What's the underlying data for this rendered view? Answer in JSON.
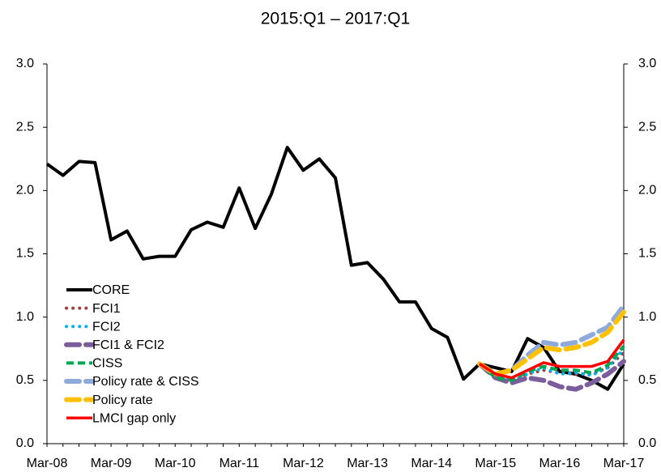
{
  "chart_data": {
    "type": "line",
    "title": "2015:Q1 – 2017:Q1",
    "categories": [
      "Mar-08",
      null,
      null,
      null,
      "Mar-09",
      null,
      null,
      null,
      "Mar-10",
      null,
      null,
      null,
      "Mar-11",
      null,
      null,
      null,
      "Mar-12",
      null,
      null,
      null,
      "Mar-13",
      null,
      null,
      null,
      "Mar-14",
      null,
      null,
      null,
      "Mar-15",
      null,
      null,
      null,
      "Mar-16",
      null,
      null,
      null,
      "Mar-17"
    ],
    "ylim": [
      0,
      3
    ],
    "yticks": [
      {
        "value": 0,
        "label": "0.0"
      },
      {
        "value": 0.5,
        "label": "0.5"
      },
      {
        "value": 1,
        "label": "1.0"
      },
      {
        "value": 1.5,
        "label": "1.5"
      },
      {
        "value": 2,
        "label": "2.0"
      },
      {
        "value": 2.5,
        "label": "2.5"
      },
      {
        "value": 3,
        "label": "3.0"
      }
    ],
    "y2lim": [
      0,
      3
    ],
    "y2ticks": [
      {
        "value": 0,
        "label": "0.0"
      },
      {
        "value": 0.5,
        "label": "0.5"
      },
      {
        "value": 1,
        "label": "1.0"
      },
      {
        "value": 1.5,
        "label": "1.5"
      },
      {
        "value": 2,
        "label": "2.0"
      },
      {
        "value": 2.5,
        "label": "2.5"
      },
      {
        "value": 3,
        "label": "3.0"
      }
    ],
    "legend": "lower left",
    "series": [
      {
        "name": "CORE",
        "color": "#000000",
        "style": "solid",
        "values": [
          2.21,
          2.12,
          2.23,
          2.22,
          1.61,
          1.68,
          1.46,
          1.48,
          1.48,
          1.69,
          1.75,
          1.71,
          2.02,
          1.7,
          1.97,
          2.34,
          2.16,
          2.25,
          2.1,
          1.41,
          1.43,
          1.3,
          1.12,
          1.12,
          0.91,
          0.84,
          0.51,
          0.63,
          0.6,
          0.57,
          0.83,
          0.76,
          0.57,
          0.55,
          0.5,
          0.43,
          0.63
        ]
      },
      {
        "name": "FCI1",
        "color": "#a0403c",
        "style": "dotted",
        "values": [
          null,
          null,
          null,
          null,
          null,
          null,
          null,
          null,
          null,
          null,
          null,
          null,
          null,
          null,
          null,
          null,
          null,
          null,
          null,
          null,
          null,
          null,
          null,
          null,
          null,
          null,
          null,
          0.63,
          0.52,
          0.49,
          0.55,
          0.58,
          0.56,
          0.55,
          0.55,
          0.6,
          0.72
        ]
      },
      {
        "name": "FCI2",
        "color": "#00b0f0",
        "style": "dotted",
        "values": [
          null,
          null,
          null,
          null,
          null,
          null,
          null,
          null,
          null,
          null,
          null,
          null,
          null,
          null,
          null,
          null,
          null,
          null,
          null,
          null,
          null,
          null,
          null,
          null,
          null,
          null,
          null,
          0.63,
          0.53,
          0.5,
          0.55,
          0.6,
          0.55,
          0.56,
          0.54,
          0.6,
          0.75
        ]
      },
      {
        "name": "FCI1 & FCI2",
        "color": "#7a5d9a",
        "style": "longdash",
        "values": [
          null,
          null,
          null,
          null,
          null,
          null,
          null,
          null,
          null,
          null,
          null,
          null,
          null,
          null,
          null,
          null,
          null,
          null,
          null,
          null,
          null,
          null,
          null,
          null,
          null,
          null,
          null,
          0.63,
          0.52,
          0.48,
          0.52,
          0.5,
          0.45,
          0.43,
          0.48,
          0.55,
          0.65
        ]
      },
      {
        "name": "CISS",
        "color": "#00a651",
        "style": "dashed",
        "values": [
          null,
          null,
          null,
          null,
          null,
          null,
          null,
          null,
          null,
          null,
          null,
          null,
          null,
          null,
          null,
          null,
          null,
          null,
          null,
          null,
          null,
          null,
          null,
          null,
          null,
          null,
          null,
          0.63,
          0.52,
          0.5,
          0.57,
          0.61,
          0.58,
          0.58,
          0.56,
          0.62,
          0.77
        ]
      },
      {
        "name": "Policy rate & CISS",
        "color": "#8eaadb",
        "style": "longdash",
        "values": [
          null,
          null,
          null,
          null,
          null,
          null,
          null,
          null,
          null,
          null,
          null,
          null,
          null,
          null,
          null,
          null,
          null,
          null,
          null,
          null,
          null,
          null,
          null,
          null,
          null,
          null,
          null,
          0.63,
          0.55,
          0.58,
          0.7,
          0.8,
          0.78,
          0.8,
          0.86,
          0.92,
          1.09
        ]
      },
      {
        "name": "Policy rate",
        "color": "#ffc000",
        "style": "longdash",
        "values": [
          null,
          null,
          null,
          null,
          null,
          null,
          null,
          null,
          null,
          null,
          null,
          null,
          null,
          null,
          null,
          null,
          null,
          null,
          null,
          null,
          null,
          null,
          null,
          null,
          null,
          null,
          null,
          0.63,
          0.55,
          0.58,
          0.67,
          0.76,
          0.74,
          0.76,
          0.8,
          0.88,
          1.04
        ]
      },
      {
        "name": "LMCI gap only",
        "color": "#ff0000",
        "style": "solid",
        "values": [
          null,
          null,
          null,
          null,
          null,
          null,
          null,
          null,
          null,
          null,
          null,
          null,
          null,
          null,
          null,
          null,
          null,
          null,
          null,
          null,
          null,
          null,
          null,
          null,
          null,
          null,
          null,
          0.63,
          0.55,
          0.52,
          0.58,
          0.64,
          0.61,
          0.61,
          0.61,
          0.65,
          0.82
        ]
      }
    ]
  }
}
